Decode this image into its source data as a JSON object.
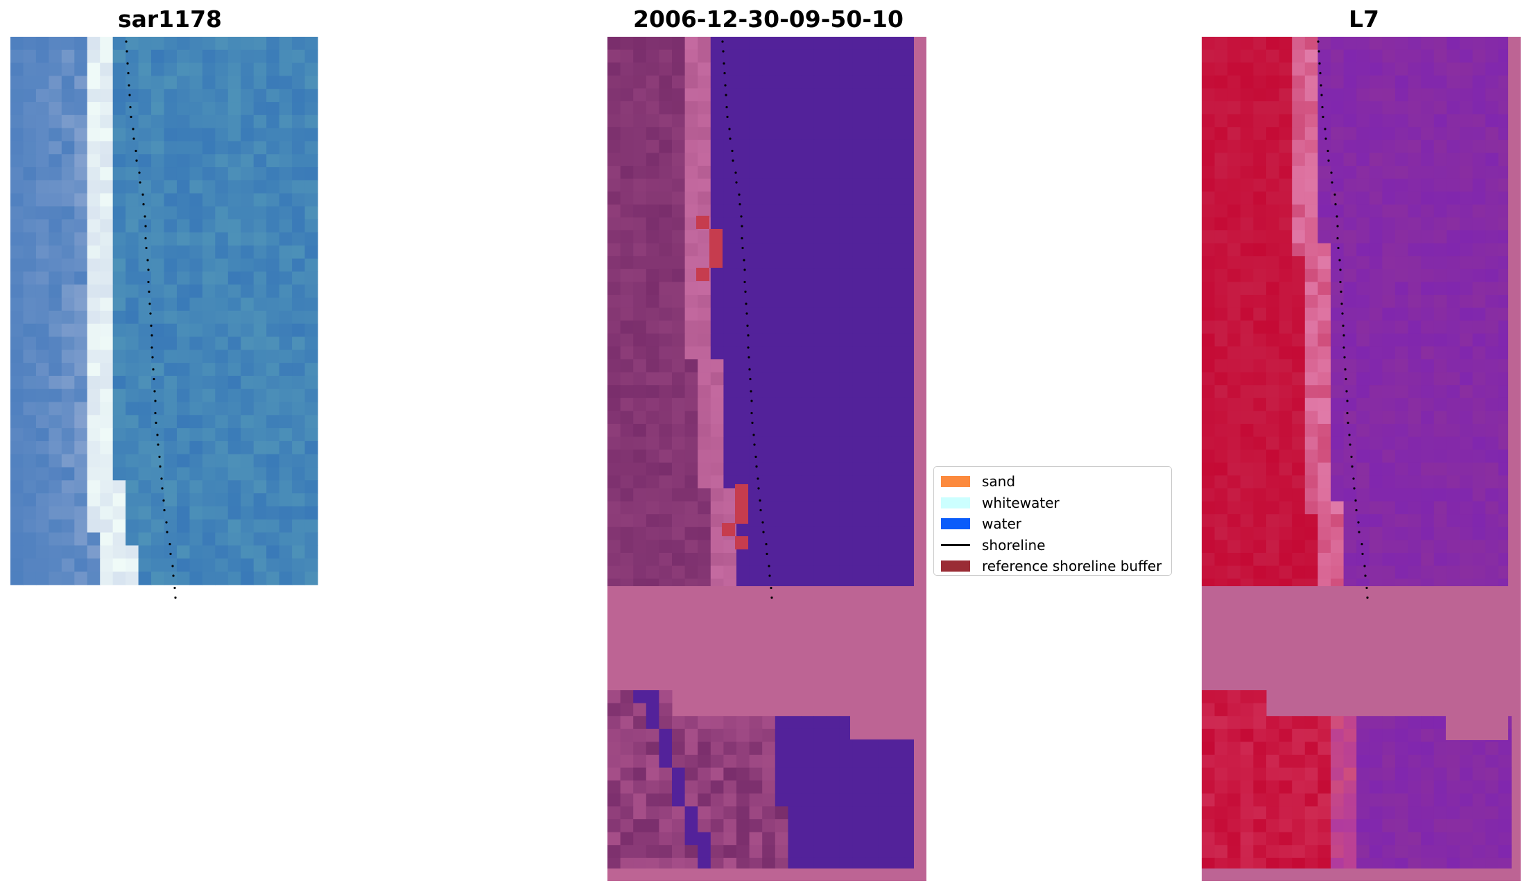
{
  "panels": {
    "left_title": "sar1178",
    "middle_title": "2006-12-30-09-50-10",
    "right_title": "L7"
  },
  "legend": {
    "items": [
      {
        "label": "sand",
        "color": "#fc8a3e",
        "kind": "patch"
      },
      {
        "label": "whitewater",
        "color": "#ccffff",
        "kind": "patch"
      },
      {
        "label": "water",
        "color": "#0a5cfa",
        "kind": "patch"
      },
      {
        "label": "shoreline",
        "color": "#000000",
        "kind": "line"
      },
      {
        "label": "reference shoreline buffer",
        "color": "#9a2c35",
        "kind": "patch"
      }
    ]
  },
  "colors": {
    "rgb_water": "#3a7ab8",
    "rgb_whitewater": "#e6f4f2",
    "class_water": "#53229a",
    "class_sand": "#7a2e6c",
    "class_nodata": "#bd6494",
    "buffer": "#c63c4e",
    "mndwi_land": "#c50a35",
    "mndwi_water": "#8a2ea0"
  }
}
